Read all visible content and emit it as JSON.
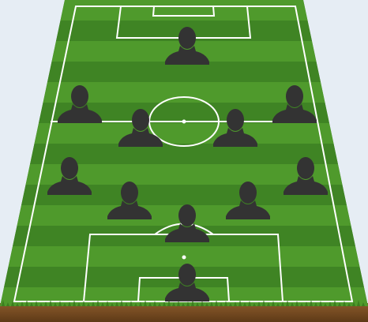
{
  "pitch": {
    "grass_light": "#4f9a2c",
    "grass_dark": "#3f8424",
    "line_color": "#ffffff",
    "soil_color": "#7a4d22",
    "edge_grass_color": "#3c7d1f"
  },
  "player_icon": {
    "icon": "person-silhouette-icon",
    "color": "#333333"
  },
  "players": [
    {
      "id": "player-1"
    },
    {
      "id": "player-2"
    },
    {
      "id": "player-3"
    },
    {
      "id": "player-4"
    },
    {
      "id": "player-5"
    },
    {
      "id": "player-6"
    },
    {
      "id": "player-7"
    },
    {
      "id": "player-8"
    },
    {
      "id": "player-9"
    },
    {
      "id": "player-10"
    },
    {
      "id": "player-11"
    },
    {
      "id": "player-12"
    }
  ]
}
